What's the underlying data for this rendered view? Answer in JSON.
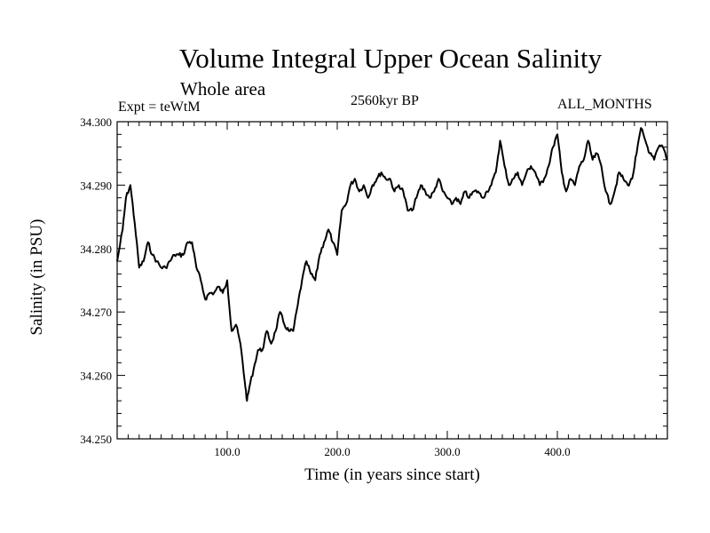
{
  "chart_data": {
    "type": "line",
    "title": "Volume Integral Upper Ocean Salinity",
    "subtitle": "Whole area",
    "experiment": "Expt = teWtM",
    "period": "2560kyr BP",
    "months": "ALL_MONTHS",
    "xlabel": "Time (in years since start)",
    "ylabel": "Salinity (in PSU)",
    "xlim": [
      0,
      500
    ],
    "ylim": [
      34.25,
      34.3
    ],
    "xticks": [
      100,
      200,
      300,
      400
    ],
    "xtick_labels": [
      "100.0",
      "200.0",
      "300.0",
      "400.0"
    ],
    "yticks": [
      34.25,
      34.26,
      34.27,
      34.28,
      34.29,
      34.3
    ],
    "ytick_labels": [
      "34.250",
      "34.260",
      "34.270",
      "34.280",
      "34.290",
      "34.300"
    ],
    "series": [
      {
        "name": "Salinity",
        "x": [
          0,
          5,
          8,
          12,
          16,
          20,
          24,
          28,
          32,
          36,
          40,
          44,
          48,
          52,
          56,
          60,
          64,
          68,
          72,
          76,
          80,
          84,
          88,
          92,
          96,
          100,
          104,
          108,
          112,
          116,
          118,
          120,
          124,
          128,
          132,
          136,
          140,
          144,
          148,
          152,
          156,
          160,
          164,
          168,
          172,
          176,
          180,
          184,
          188,
          192,
          196,
          200,
          204,
          208,
          212,
          216,
          220,
          224,
          228,
          232,
          236,
          240,
          244,
          248,
          252,
          256,
          260,
          264,
          268,
          272,
          276,
          280,
          284,
          288,
          292,
          296,
          300,
          304,
          308,
          312,
          316,
          320,
          324,
          328,
          332,
          336,
          340,
          344,
          348,
          352,
          356,
          360,
          364,
          368,
          372,
          376,
          380,
          384,
          388,
          392,
          396,
          400,
          404,
          408,
          412,
          416,
          420,
          424,
          428,
          432,
          436,
          440,
          444,
          448,
          452,
          456,
          460,
          464,
          468,
          472,
          476,
          480,
          484,
          488,
          492,
          496,
          500
        ],
        "y": [
          34.278,
          34.283,
          34.288,
          34.29,
          34.284,
          34.277,
          34.278,
          34.281,
          34.279,
          34.278,
          34.277,
          34.277,
          34.278,
          34.279,
          34.279,
          34.279,
          34.281,
          34.281,
          34.277,
          34.275,
          34.272,
          34.273,
          34.273,
          34.274,
          34.273,
          34.275,
          34.267,
          34.268,
          34.265,
          34.259,
          34.256,
          34.258,
          34.261,
          34.264,
          34.264,
          34.267,
          34.265,
          34.267,
          34.27,
          34.268,
          34.267,
          34.267,
          34.271,
          34.275,
          34.278,
          34.276,
          34.275,
          34.279,
          34.281,
          34.283,
          34.281,
          34.279,
          34.286,
          34.287,
          34.29,
          34.291,
          34.289,
          34.29,
          34.288,
          34.29,
          34.291,
          34.292,
          34.291,
          34.291,
          34.289,
          34.29,
          34.289,
          34.286,
          34.286,
          34.288,
          34.29,
          34.289,
          34.288,
          34.289,
          34.291,
          34.289,
          34.288,
          34.287,
          34.288,
          34.287,
          34.289,
          34.288,
          34.289,
          34.289,
          34.288,
          34.289,
          34.29,
          34.292,
          34.297,
          34.293,
          34.29,
          34.291,
          34.292,
          34.29,
          34.292,
          34.293,
          34.292,
          34.29,
          34.291,
          34.293,
          34.296,
          34.298,
          34.292,
          34.289,
          34.291,
          34.29,
          34.293,
          34.294,
          34.297,
          34.294,
          34.295,
          34.293,
          34.289,
          34.287,
          34.289,
          34.292,
          34.291,
          34.29,
          34.291,
          34.295,
          34.299,
          34.297,
          34.295,
          34.294,
          34.296,
          34.296,
          34.294
        ]
      }
    ]
  }
}
